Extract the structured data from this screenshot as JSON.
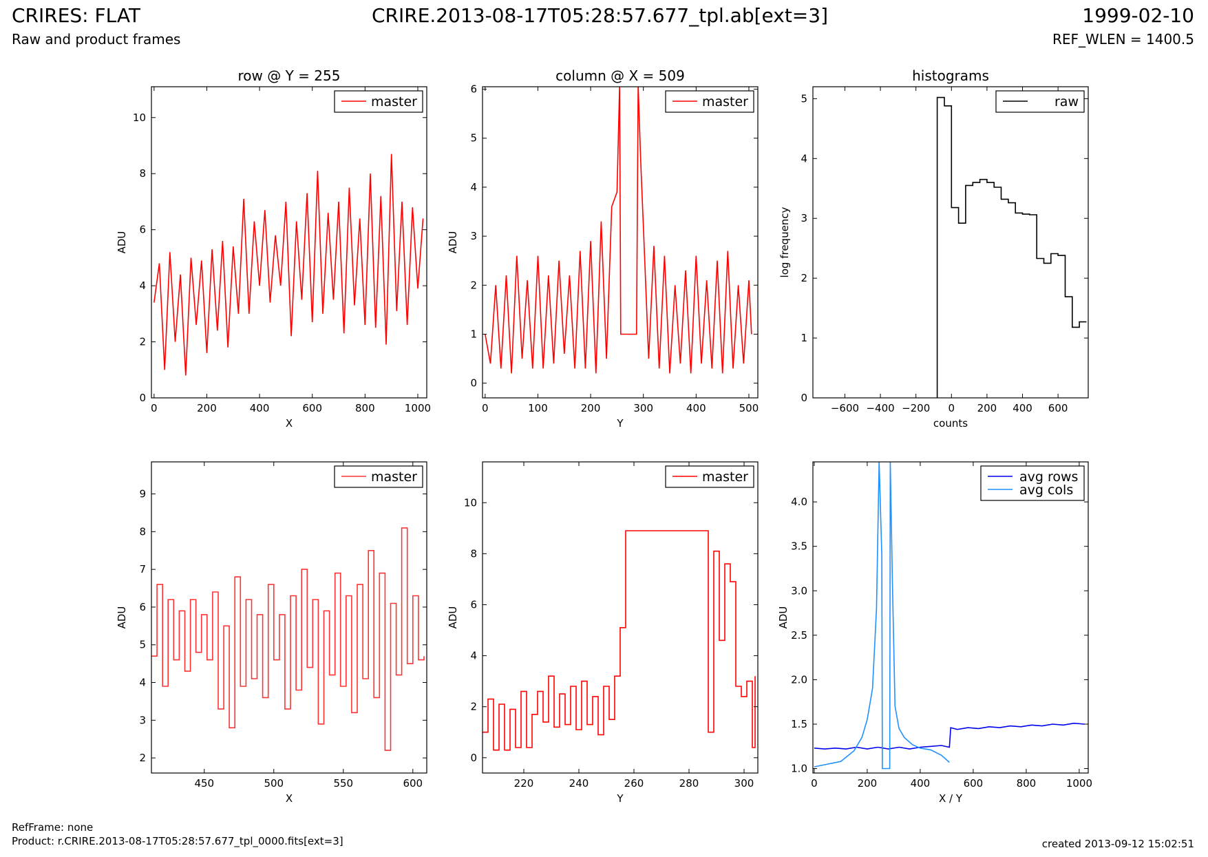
{
  "header": {
    "left_title": "CRIRES: FLAT",
    "subtitle": "Raw and product frames",
    "center_title": "CRIRE.2013-08-17T05:28:57.677_tpl.ab[ext=3]",
    "right_title": "1999-02-10",
    "ref_wlen": "REF_WLEN = 1400.5"
  },
  "footer": {
    "ref_frame": "RefFrame: none",
    "product": "Product: r.CRIRE.2013-08-17T05:28:57.677_tpl_0000.fits[ext=3]",
    "created": "created 2013-09-12 15:02:51"
  },
  "colors": {
    "master": "#ff0000",
    "master_zoom": "#ff3333",
    "raw": "#000000",
    "avg_rows": "#0000ee",
    "avg_cols": "#1e90ff"
  },
  "chart_data": [
    {
      "id": "row",
      "type": "line",
      "title": "row @ Y = 255",
      "xlabel": "X",
      "ylabel": "ADU",
      "xlim": [
        -10,
        1034
      ],
      "ylim": [
        0,
        11.1
      ],
      "xticks": [
        0,
        200,
        400,
        600,
        800,
        1000
      ],
      "yticks": [
        0,
        2,
        4,
        6,
        8,
        10
      ],
      "legend_position": "top-right",
      "series": [
        {
          "name": "master",
          "color": "#ff0000",
          "step": false,
          "x": [
            0,
            20,
            40,
            60,
            80,
            100,
            120,
            140,
            160,
            180,
            200,
            220,
            240,
            260,
            280,
            300,
            320,
            340,
            360,
            380,
            400,
            420,
            440,
            460,
            480,
            500,
            520,
            540,
            560,
            580,
            600,
            620,
            640,
            660,
            680,
            700,
            720,
            740,
            760,
            780,
            800,
            820,
            840,
            860,
            880,
            900,
            920,
            940,
            960,
            980,
            1000,
            1020
          ],
          "y": [
            3.4,
            4.8,
            1.0,
            5.2,
            2.0,
            4.4,
            0.8,
            5.0,
            2.6,
            4.9,
            1.6,
            5.3,
            2.4,
            5.6,
            1.8,
            5.4,
            3.0,
            7.1,
            3.0,
            6.3,
            4.0,
            6.7,
            3.4,
            5.8,
            4.0,
            7.0,
            2.2,
            6.3,
            3.5,
            7.3,
            2.7,
            8.1,
            3.0,
            6.6,
            3.5,
            7.0,
            2.3,
            7.5,
            3.3,
            6.4,
            2.6,
            8.0,
            2.5,
            7.2,
            1.9,
            8.7,
            3.1,
            7.0,
            2.6,
            6.8,
            3.9,
            6.4
          ]
        }
      ]
    },
    {
      "id": "column",
      "type": "line",
      "title": "column @ X = 509",
      "xlabel": "Y",
      "ylabel": "ADU",
      "xlim": [
        -5,
        517
      ],
      "ylim": [
        -0.3,
        6.05
      ],
      "xticks": [
        0,
        100,
        200,
        300,
        400,
        500
      ],
      "yticks": [
        0,
        1,
        2,
        3,
        4,
        5,
        6
      ],
      "legend_position": "top-right",
      "series": [
        {
          "name": "master",
          "color": "#ff0000",
          "step": false,
          "x": [
            0,
            10,
            20,
            30,
            40,
            50,
            60,
            70,
            80,
            90,
            100,
            110,
            120,
            130,
            140,
            150,
            160,
            170,
            180,
            190,
            200,
            210,
            220,
            230,
            240,
            250,
            255,
            257,
            287,
            290,
            295,
            300,
            310,
            320,
            330,
            340,
            350,
            360,
            370,
            380,
            390,
            400,
            410,
            420,
            430,
            440,
            450,
            460,
            470,
            480,
            490,
            500,
            505
          ],
          "y": [
            1.0,
            0.4,
            2.0,
            0.3,
            2.2,
            0.2,
            2.6,
            0.5,
            2.1,
            0.3,
            2.6,
            0.3,
            2.2,
            0.4,
            2.5,
            0.6,
            2.2,
            0.3,
            2.7,
            0.3,
            2.9,
            0.2,
            3.3,
            0.5,
            3.6,
            3.9,
            6.1,
            1.0,
            1.0,
            6.1,
            4.5,
            3.2,
            0.5,
            2.8,
            0.3,
            2.6,
            0.2,
            2.0,
            0.4,
            2.3,
            0.2,
            2.6,
            0.4,
            2.1,
            0.3,
            2.5,
            0.2,
            2.7,
            0.3,
            2.0,
            0.4,
            2.1,
            1.0
          ]
        }
      ]
    },
    {
      "id": "hist",
      "type": "line",
      "title": "histograms",
      "xlabel": "counts",
      "ylabel": "log frequency",
      "xlim": [
        -780,
        770
      ],
      "ylim": [
        0,
        5.2
      ],
      "xticks": [
        -600,
        -400,
        -200,
        0,
        200,
        400,
        600
      ],
      "yticks": [
        0,
        1,
        2,
        3,
        4,
        5
      ],
      "legend_position": "top-right",
      "series": [
        {
          "name": "raw",
          "color": "#000000",
          "step": true,
          "x": [
            -80,
            -80,
            -40,
            0,
            40,
            80,
            120,
            160,
            200,
            240,
            280,
            320,
            360,
            400,
            440,
            480,
            520,
            560,
            600,
            640,
            680,
            720,
            760
          ],
          "y": [
            0,
            5.02,
            4.88,
            3.18,
            2.92,
            3.55,
            3.6,
            3.65,
            3.6,
            3.52,
            3.32,
            3.26,
            3.09,
            3.07,
            3.06,
            2.33,
            2.25,
            2.41,
            2.38,
            1.69,
            1.18,
            1.27,
            1.27
          ]
        }
      ]
    },
    {
      "id": "row_zoom",
      "type": "line",
      "title": "",
      "xlabel": "X",
      "ylabel": "ADU",
      "xlim": [
        412,
        610
      ],
      "ylim": [
        1.6,
        9.85
      ],
      "xticks": [
        450,
        500,
        550,
        600
      ],
      "yticks": [
        2,
        3,
        4,
        5,
        6,
        7,
        8,
        9
      ],
      "legend_position": "top-right",
      "series": [
        {
          "name": "master",
          "color": "#ff3333",
          "step": true,
          "x": [
            412,
            416,
            420,
            424,
            428,
            432,
            436,
            440,
            444,
            448,
            452,
            456,
            460,
            464,
            468,
            472,
            476,
            480,
            484,
            488,
            492,
            496,
            500,
            504,
            508,
            512,
            516,
            520,
            524,
            528,
            532,
            536,
            540,
            544,
            548,
            552,
            556,
            560,
            564,
            568,
            572,
            576,
            580,
            584,
            588,
            592,
            596,
            600,
            604,
            608
          ],
          "y": [
            4.7,
            6.6,
            3.9,
            6.2,
            4.6,
            5.9,
            4.3,
            6.2,
            4.8,
            5.8,
            4.6,
            6.4,
            3.3,
            5.5,
            2.8,
            6.8,
            3.9,
            6.2,
            4.1,
            5.8,
            3.6,
            6.6,
            4.6,
            5.8,
            3.3,
            6.3,
            3.8,
            7.0,
            4.4,
            6.2,
            2.9,
            5.9,
            4.2,
            6.9,
            3.9,
            6.3,
            3.2,
            6.6,
            4.1,
            7.5,
            3.6,
            6.9,
            2.2,
            6.1,
            4.2,
            8.1,
            4.5,
            6.3,
            4.6,
            4.7
          ]
        }
      ]
    },
    {
      "id": "column_zoom",
      "type": "line",
      "title": "",
      "xlabel": "Y",
      "ylabel": "ADU",
      "xlim": [
        205,
        305
      ],
      "ylim": [
        -0.6,
        11.6
      ],
      "xticks": [
        220,
        240,
        260,
        280,
        300
      ],
      "yticks": [
        0,
        2,
        4,
        6,
        8,
        10
      ],
      "legend_position": "top-right",
      "series": [
        {
          "name": "master",
          "color": "#ff0000",
          "step": true,
          "x": [
            205,
            207,
            209,
            211,
            213,
            215,
            217,
            219,
            221,
            223,
            225,
            227,
            229,
            231,
            233,
            235,
            237,
            239,
            241,
            243,
            245,
            247,
            249,
            251,
            253,
            255,
            257,
            287,
            289,
            291,
            293,
            295,
            297,
            299,
            301,
            303,
            304
          ],
          "y": [
            1.0,
            2.3,
            0.3,
            2.1,
            0.3,
            1.9,
            0.4,
            2.6,
            0.4,
            1.7,
            2.6,
            1.4,
            3.2,
            1.2,
            2.5,
            1.3,
            2.8,
            1.1,
            3.0,
            1.3,
            2.4,
            0.9,
            2.8,
            1.5,
            3.2,
            5.1,
            8.9,
            1.0,
            8.1,
            4.6,
            7.6,
            6.9,
            2.8,
            2.4,
            3.0,
            0.4,
            3.2
          ]
        }
      ]
    },
    {
      "id": "avg",
      "type": "line",
      "title": "",
      "xlabel": "X / Y",
      "ylabel": "ADU",
      "xlim": [
        -5,
        1034
      ],
      "ylim": [
        0.95,
        4.45
      ],
      "xticks": [
        0,
        200,
        400,
        600,
        800,
        1000
      ],
      "yticks": [
        1.0,
        1.5,
        2.0,
        2.5,
        3.0,
        3.5,
        4.0
      ],
      "legend_position": "top-right",
      "series": [
        {
          "name": "avg rows",
          "color": "#0000ee",
          "step": false,
          "x": [
            0,
            40,
            80,
            120,
            160,
            200,
            240,
            280,
            320,
            360,
            400,
            440,
            480,
            510,
            515,
            540,
            580,
            620,
            660,
            700,
            740,
            780,
            820,
            860,
            900,
            940,
            980,
            1020
          ],
          "y": [
            1.23,
            1.22,
            1.23,
            1.22,
            1.24,
            1.22,
            1.24,
            1.22,
            1.24,
            1.22,
            1.24,
            1.25,
            1.26,
            1.24,
            1.46,
            1.44,
            1.46,
            1.45,
            1.47,
            1.46,
            1.48,
            1.47,
            1.49,
            1.48,
            1.5,
            1.49,
            1.51,
            1.5
          ]
        },
        {
          "name": "avg cols",
          "color": "#1e90ff",
          "step": false,
          "x": [
            0,
            50,
            100,
            150,
            180,
            200,
            220,
            235,
            245,
            255,
            257,
            285,
            287,
            295,
            305,
            320,
            340,
            370,
            400,
            440,
            480,
            510
          ],
          "y": [
            1.02,
            1.05,
            1.08,
            1.2,
            1.35,
            1.55,
            1.9,
            2.8,
            4.45,
            3.4,
            1.0,
            1.0,
            4.45,
            3.1,
            1.7,
            1.45,
            1.35,
            1.27,
            1.23,
            1.21,
            1.15,
            1.07
          ]
        }
      ]
    }
  ]
}
